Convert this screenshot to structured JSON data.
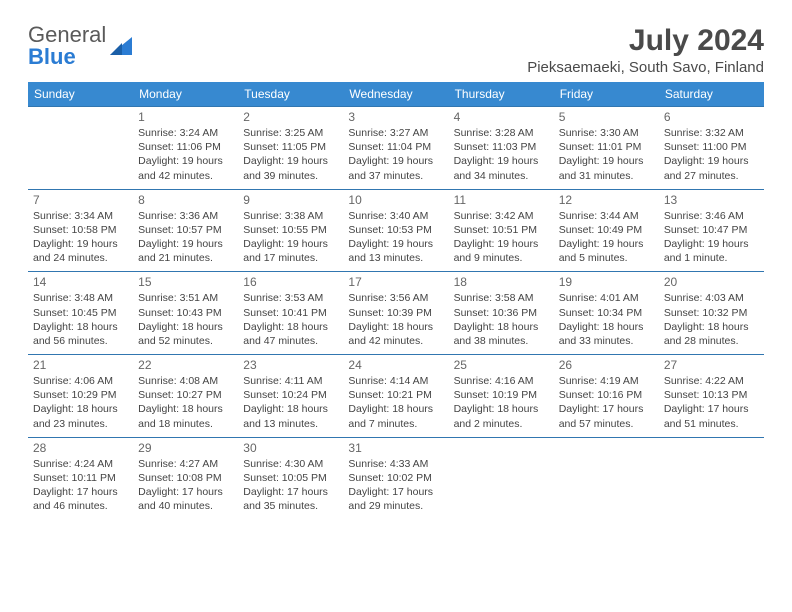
{
  "logo": {
    "line1": "General",
    "line2": "Blue"
  },
  "title": "July 2024",
  "subtitle": "Pieksaemaeki, South Savo, Finland",
  "weekdays": [
    "Sunday",
    "Monday",
    "Tuesday",
    "Wednesday",
    "Thursday",
    "Friday",
    "Saturday"
  ],
  "colors": {
    "header_bg": "#3789d0",
    "header_text": "#ffffff",
    "cell_border": "#3176b0",
    "title_color": "#4a4a4a",
    "logo_gray": "#5a5a5a",
    "logo_blue": "#2b7cd3",
    "body_text": "#444"
  },
  "weeks": [
    [
      null,
      {
        "d": "1",
        "sr": "Sunrise: 3:24 AM",
        "ss": "Sunset: 11:06 PM",
        "dl1": "Daylight: 19 hours",
        "dl2": "and 42 minutes."
      },
      {
        "d": "2",
        "sr": "Sunrise: 3:25 AM",
        "ss": "Sunset: 11:05 PM",
        "dl1": "Daylight: 19 hours",
        "dl2": "and 39 minutes."
      },
      {
        "d": "3",
        "sr": "Sunrise: 3:27 AM",
        "ss": "Sunset: 11:04 PM",
        "dl1": "Daylight: 19 hours",
        "dl2": "and 37 minutes."
      },
      {
        "d": "4",
        "sr": "Sunrise: 3:28 AM",
        "ss": "Sunset: 11:03 PM",
        "dl1": "Daylight: 19 hours",
        "dl2": "and 34 minutes."
      },
      {
        "d": "5",
        "sr": "Sunrise: 3:30 AM",
        "ss": "Sunset: 11:01 PM",
        "dl1": "Daylight: 19 hours",
        "dl2": "and 31 minutes."
      },
      {
        "d": "6",
        "sr": "Sunrise: 3:32 AM",
        "ss": "Sunset: 11:00 PM",
        "dl1": "Daylight: 19 hours",
        "dl2": "and 27 minutes."
      }
    ],
    [
      {
        "d": "7",
        "sr": "Sunrise: 3:34 AM",
        "ss": "Sunset: 10:58 PM",
        "dl1": "Daylight: 19 hours",
        "dl2": "and 24 minutes."
      },
      {
        "d": "8",
        "sr": "Sunrise: 3:36 AM",
        "ss": "Sunset: 10:57 PM",
        "dl1": "Daylight: 19 hours",
        "dl2": "and 21 minutes."
      },
      {
        "d": "9",
        "sr": "Sunrise: 3:38 AM",
        "ss": "Sunset: 10:55 PM",
        "dl1": "Daylight: 19 hours",
        "dl2": "and 17 minutes."
      },
      {
        "d": "10",
        "sr": "Sunrise: 3:40 AM",
        "ss": "Sunset: 10:53 PM",
        "dl1": "Daylight: 19 hours",
        "dl2": "and 13 minutes."
      },
      {
        "d": "11",
        "sr": "Sunrise: 3:42 AM",
        "ss": "Sunset: 10:51 PM",
        "dl1": "Daylight: 19 hours",
        "dl2": "and 9 minutes."
      },
      {
        "d": "12",
        "sr": "Sunrise: 3:44 AM",
        "ss": "Sunset: 10:49 PM",
        "dl1": "Daylight: 19 hours",
        "dl2": "and 5 minutes."
      },
      {
        "d": "13",
        "sr": "Sunrise: 3:46 AM",
        "ss": "Sunset: 10:47 PM",
        "dl1": "Daylight: 19 hours",
        "dl2": "and 1 minute."
      }
    ],
    [
      {
        "d": "14",
        "sr": "Sunrise: 3:48 AM",
        "ss": "Sunset: 10:45 PM",
        "dl1": "Daylight: 18 hours",
        "dl2": "and 56 minutes."
      },
      {
        "d": "15",
        "sr": "Sunrise: 3:51 AM",
        "ss": "Sunset: 10:43 PM",
        "dl1": "Daylight: 18 hours",
        "dl2": "and 52 minutes."
      },
      {
        "d": "16",
        "sr": "Sunrise: 3:53 AM",
        "ss": "Sunset: 10:41 PM",
        "dl1": "Daylight: 18 hours",
        "dl2": "and 47 minutes."
      },
      {
        "d": "17",
        "sr": "Sunrise: 3:56 AM",
        "ss": "Sunset: 10:39 PM",
        "dl1": "Daylight: 18 hours",
        "dl2": "and 42 minutes."
      },
      {
        "d": "18",
        "sr": "Sunrise: 3:58 AM",
        "ss": "Sunset: 10:36 PM",
        "dl1": "Daylight: 18 hours",
        "dl2": "and 38 minutes."
      },
      {
        "d": "19",
        "sr": "Sunrise: 4:01 AM",
        "ss": "Sunset: 10:34 PM",
        "dl1": "Daylight: 18 hours",
        "dl2": "and 33 minutes."
      },
      {
        "d": "20",
        "sr": "Sunrise: 4:03 AM",
        "ss": "Sunset: 10:32 PM",
        "dl1": "Daylight: 18 hours",
        "dl2": "and 28 minutes."
      }
    ],
    [
      {
        "d": "21",
        "sr": "Sunrise: 4:06 AM",
        "ss": "Sunset: 10:29 PM",
        "dl1": "Daylight: 18 hours",
        "dl2": "and 23 minutes."
      },
      {
        "d": "22",
        "sr": "Sunrise: 4:08 AM",
        "ss": "Sunset: 10:27 PM",
        "dl1": "Daylight: 18 hours",
        "dl2": "and 18 minutes."
      },
      {
        "d": "23",
        "sr": "Sunrise: 4:11 AM",
        "ss": "Sunset: 10:24 PM",
        "dl1": "Daylight: 18 hours",
        "dl2": "and 13 minutes."
      },
      {
        "d": "24",
        "sr": "Sunrise: 4:14 AM",
        "ss": "Sunset: 10:21 PM",
        "dl1": "Daylight: 18 hours",
        "dl2": "and 7 minutes."
      },
      {
        "d": "25",
        "sr": "Sunrise: 4:16 AM",
        "ss": "Sunset: 10:19 PM",
        "dl1": "Daylight: 18 hours",
        "dl2": "and 2 minutes."
      },
      {
        "d": "26",
        "sr": "Sunrise: 4:19 AM",
        "ss": "Sunset: 10:16 PM",
        "dl1": "Daylight: 17 hours",
        "dl2": "and 57 minutes."
      },
      {
        "d": "27",
        "sr": "Sunrise: 4:22 AM",
        "ss": "Sunset: 10:13 PM",
        "dl1": "Daylight: 17 hours",
        "dl2": "and 51 minutes."
      }
    ],
    [
      {
        "d": "28",
        "sr": "Sunrise: 4:24 AM",
        "ss": "Sunset: 10:11 PM",
        "dl1": "Daylight: 17 hours",
        "dl2": "and 46 minutes."
      },
      {
        "d": "29",
        "sr": "Sunrise: 4:27 AM",
        "ss": "Sunset: 10:08 PM",
        "dl1": "Daylight: 17 hours",
        "dl2": "and 40 minutes."
      },
      {
        "d": "30",
        "sr": "Sunrise: 4:30 AM",
        "ss": "Sunset: 10:05 PM",
        "dl1": "Daylight: 17 hours",
        "dl2": "and 35 minutes."
      },
      {
        "d": "31",
        "sr": "Sunrise: 4:33 AM",
        "ss": "Sunset: 10:02 PM",
        "dl1": "Daylight: 17 hours",
        "dl2": "and 29 minutes."
      },
      null,
      null,
      null
    ]
  ]
}
